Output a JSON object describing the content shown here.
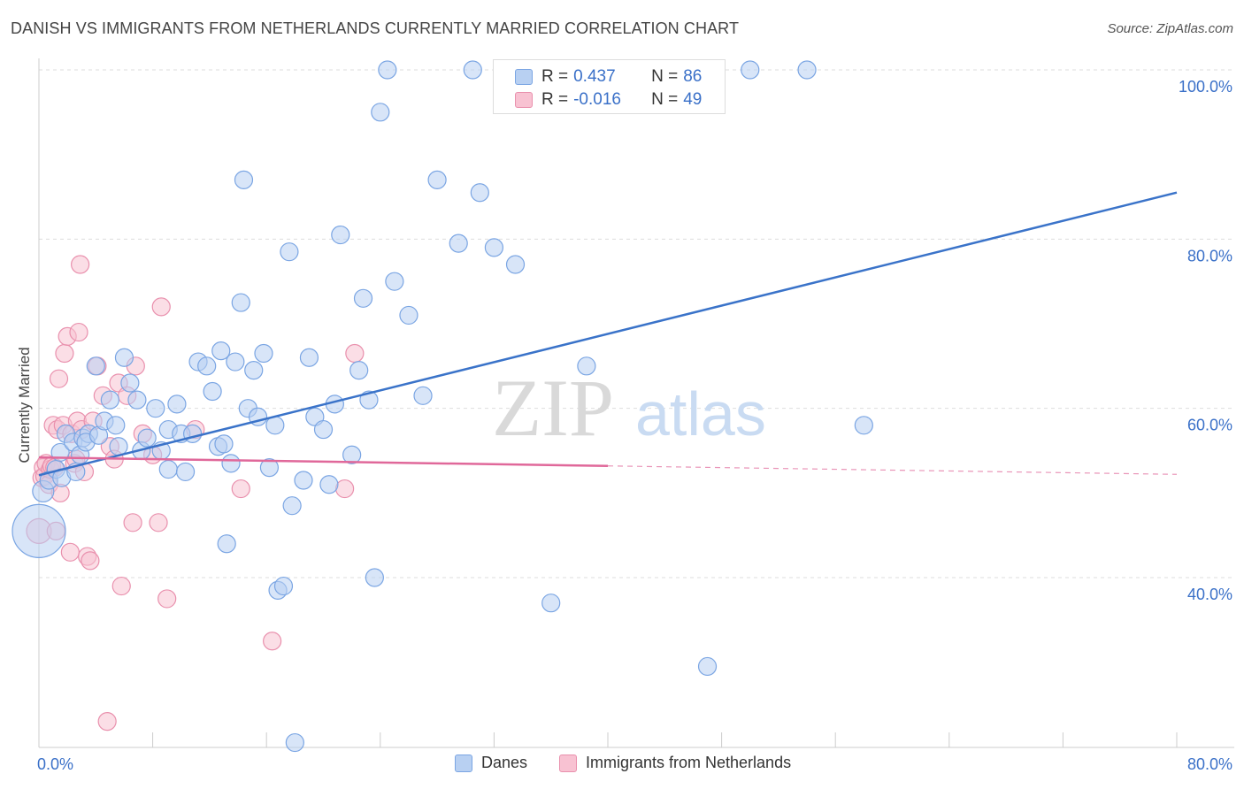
{
  "title": "DANISH VS IMMIGRANTS FROM NETHERLANDS CURRENTLY MARRIED CORRELATION CHART",
  "source": "Source: ZipAtlas.com",
  "watermark": {
    "zip": "ZIP",
    "atlas": "atlas"
  },
  "legend": {
    "r_label": "R =",
    "n_label": "N =",
    "series": [
      {
        "r": "0.437",
        "n": "86"
      },
      {
        "r": "-0.016",
        "n": "49"
      }
    ]
  },
  "bottom_legend": [
    "Danes",
    "Immigrants from Netherlands"
  ],
  "colors": {
    "blue_fill": "#b8d0f2",
    "blue_stroke": "#7aa5e3",
    "blue_line": "#3a73c9",
    "pink_fill": "#f8c2d2",
    "pink_stroke": "#e990ad",
    "pink_line": "#e0689a",
    "axis_text": "#3a70c8",
    "grid": "#dddddd"
  },
  "chart_data": {
    "type": "scatter",
    "title": "DANISH VS IMMIGRANTS FROM NETHERLANDS CURRENTLY MARRIED CORRELATION CHART",
    "xlabel": "",
    "ylabel": "Currently Married",
    "xlim": [
      0,
      80
    ],
    "ylim": [
      20,
      102
    ],
    "x_tick_labels": [
      "0.0%",
      "80.0%"
    ],
    "y_ticks": [
      40,
      60,
      80,
      100
    ],
    "y_tick_labels": [
      "40.0%",
      "60.0%",
      "80.0%",
      "100.0%"
    ],
    "grid": true,
    "legend_position": "top-center",
    "series": [
      {
        "name": "Danes",
        "r": 0.437,
        "n": 86,
        "trend": {
          "x": [
            0,
            80
          ],
          "y": [
            52.1,
            85.5
          ],
          "dashed_from": null
        },
        "points": [
          [
            0.0,
            45.5,
            30
          ],
          [
            0.3,
            50.2,
            12
          ],
          [
            0.7,
            51.5,
            10
          ],
          [
            1.2,
            52.8,
            10
          ],
          [
            1.5,
            54.8,
            10
          ],
          [
            1.6,
            51.8,
            10
          ],
          [
            1.9,
            57.0,
            10
          ],
          [
            2.4,
            56.0,
            10
          ],
          [
            2.6,
            52.5,
            10
          ],
          [
            2.9,
            54.5,
            10
          ],
          [
            3.1,
            56.5,
            10
          ],
          [
            3.5,
            57.0,
            10
          ],
          [
            3.3,
            56.0,
            10
          ],
          [
            4.2,
            56.8,
            10
          ],
          [
            4.6,
            58.5,
            10
          ],
          [
            5.0,
            61.0,
            10
          ],
          [
            5.4,
            58.0,
            10
          ],
          [
            4.0,
            65.0,
            10
          ],
          [
            5.6,
            55.5,
            10
          ],
          [
            6.0,
            66.0,
            10
          ],
          [
            6.4,
            63.0,
            10
          ],
          [
            6.9,
            61.0,
            10
          ],
          [
            7.2,
            55.0,
            10
          ],
          [
            7.6,
            56.5,
            10
          ],
          [
            8.2,
            60.0,
            10
          ],
          [
            8.6,
            55.0,
            10
          ],
          [
            9.1,
            57.5,
            10
          ],
          [
            9.1,
            52.8,
            10
          ],
          [
            9.7,
            60.5,
            10
          ],
          [
            10.0,
            57.0,
            10
          ],
          [
            10.3,
            52.5,
            10
          ],
          [
            10.8,
            57.0,
            10
          ],
          [
            11.2,
            65.5,
            10
          ],
          [
            11.8,
            65.0,
            10
          ],
          [
            12.2,
            62.0,
            10
          ],
          [
            12.6,
            55.5,
            10
          ],
          [
            12.8,
            66.8,
            10
          ],
          [
            13.0,
            55.8,
            10
          ],
          [
            13.2,
            44.0,
            10
          ],
          [
            13.5,
            53.5,
            10
          ],
          [
            13.8,
            65.5,
            10
          ],
          [
            14.2,
            72.5,
            10
          ],
          [
            14.4,
            87.0,
            10
          ],
          [
            14.7,
            60.0,
            10
          ],
          [
            15.1,
            64.5,
            10
          ],
          [
            15.4,
            59.0,
            10
          ],
          [
            15.8,
            66.5,
            10
          ],
          [
            16.2,
            53.0,
            10
          ],
          [
            16.6,
            58.0,
            10
          ],
          [
            16.8,
            38.5,
            10
          ],
          [
            17.2,
            39.0,
            10
          ],
          [
            17.6,
            78.5,
            10
          ],
          [
            17.8,
            48.5,
            10
          ],
          [
            18.0,
            20.5,
            10
          ],
          [
            18.6,
            51.5,
            10
          ],
          [
            19.0,
            66.0,
            10
          ],
          [
            19.4,
            59.0,
            10
          ],
          [
            20.0,
            57.5,
            10
          ],
          [
            20.4,
            51.0,
            10
          ],
          [
            20.8,
            60.5,
            10
          ],
          [
            21.2,
            80.5,
            10
          ],
          [
            22.0,
            54.5,
            10
          ],
          [
            22.5,
            64.5,
            10
          ],
          [
            22.8,
            73.0,
            10
          ],
          [
            23.2,
            61.0,
            10
          ],
          [
            23.6,
            40.0,
            10
          ],
          [
            24.0,
            95.0,
            10
          ],
          [
            24.5,
            100.0,
            10
          ],
          [
            25.0,
            75.0,
            10
          ],
          [
            26.0,
            71.0,
            10
          ],
          [
            27.0,
            61.5,
            10
          ],
          [
            28.0,
            87.0,
            10
          ],
          [
            29.5,
            79.5,
            10
          ],
          [
            30.5,
            100.0,
            10
          ],
          [
            31.0,
            85.5,
            10
          ],
          [
            32.0,
            79.0,
            10
          ],
          [
            33.5,
            77.0,
            10
          ],
          [
            34.0,
            100.0,
            10
          ],
          [
            36.0,
            37.0,
            10
          ],
          [
            37.0,
            100.0,
            10
          ],
          [
            38.5,
            65.0,
            10
          ],
          [
            42.0,
            100.0,
            10
          ],
          [
            47.0,
            29.5,
            10
          ],
          [
            50.0,
            100.0,
            10
          ],
          [
            54.0,
            100.0,
            10
          ],
          [
            58.0,
            58.0,
            10
          ]
        ]
      },
      {
        "name": "Immigrants from Netherlands",
        "r": -0.016,
        "n": 49,
        "trend": {
          "x": [
            0,
            80
          ],
          "y": [
            54.2,
            52.2
          ],
          "dashed_from": 40
        },
        "points": [
          [
            0.0,
            45.5,
            14
          ],
          [
            0.2,
            51.8,
            10
          ],
          [
            0.3,
            53.0,
            10
          ],
          [
            0.4,
            52.0,
            10
          ],
          [
            0.5,
            53.5,
            10
          ],
          [
            0.7,
            51.0,
            10
          ],
          [
            0.8,
            52.8,
            10
          ],
          [
            0.9,
            53.2,
            10
          ],
          [
            1.0,
            58.0,
            10
          ],
          [
            1.1,
            53.0,
            10
          ],
          [
            1.2,
            45.5,
            10
          ],
          [
            1.3,
            57.5,
            10
          ],
          [
            1.4,
            63.5,
            10
          ],
          [
            1.5,
            50.0,
            10
          ],
          [
            1.7,
            58.0,
            10
          ],
          [
            1.8,
            66.5,
            10
          ],
          [
            2.0,
            68.5,
            10
          ],
          [
            2.2,
            43.0,
            10
          ],
          [
            2.3,
            57.0,
            10
          ],
          [
            2.5,
            53.5,
            10
          ],
          [
            2.6,
            54.0,
            10
          ],
          [
            2.7,
            58.5,
            10
          ],
          [
            2.8,
            69.0,
            10
          ],
          [
            2.9,
            77.0,
            10
          ],
          [
            3.0,
            57.5,
            10
          ],
          [
            3.2,
            52.5,
            10
          ],
          [
            3.4,
            42.5,
            10
          ],
          [
            3.6,
            42.0,
            10
          ],
          [
            3.8,
            58.5,
            10
          ],
          [
            4.1,
            65.0,
            10
          ],
          [
            4.5,
            61.5,
            10
          ],
          [
            4.8,
            23.0,
            10
          ],
          [
            5.0,
            55.5,
            10
          ],
          [
            5.3,
            54.0,
            10
          ],
          [
            5.6,
            63.0,
            10
          ],
          [
            5.8,
            39.0,
            10
          ],
          [
            6.2,
            61.5,
            10
          ],
          [
            6.6,
            46.5,
            10
          ],
          [
            6.8,
            65.0,
            10
          ],
          [
            7.3,
            57.0,
            10
          ],
          [
            8.0,
            54.5,
            10
          ],
          [
            8.4,
            46.5,
            10
          ],
          [
            8.6,
            72.0,
            10
          ],
          [
            9.0,
            37.5,
            10
          ],
          [
            11.0,
            57.5,
            10
          ],
          [
            14.2,
            50.5,
            10
          ],
          [
            16.4,
            32.5,
            10
          ],
          [
            21.5,
            50.5,
            10
          ],
          [
            22.2,
            66.5,
            10
          ]
        ]
      }
    ]
  }
}
